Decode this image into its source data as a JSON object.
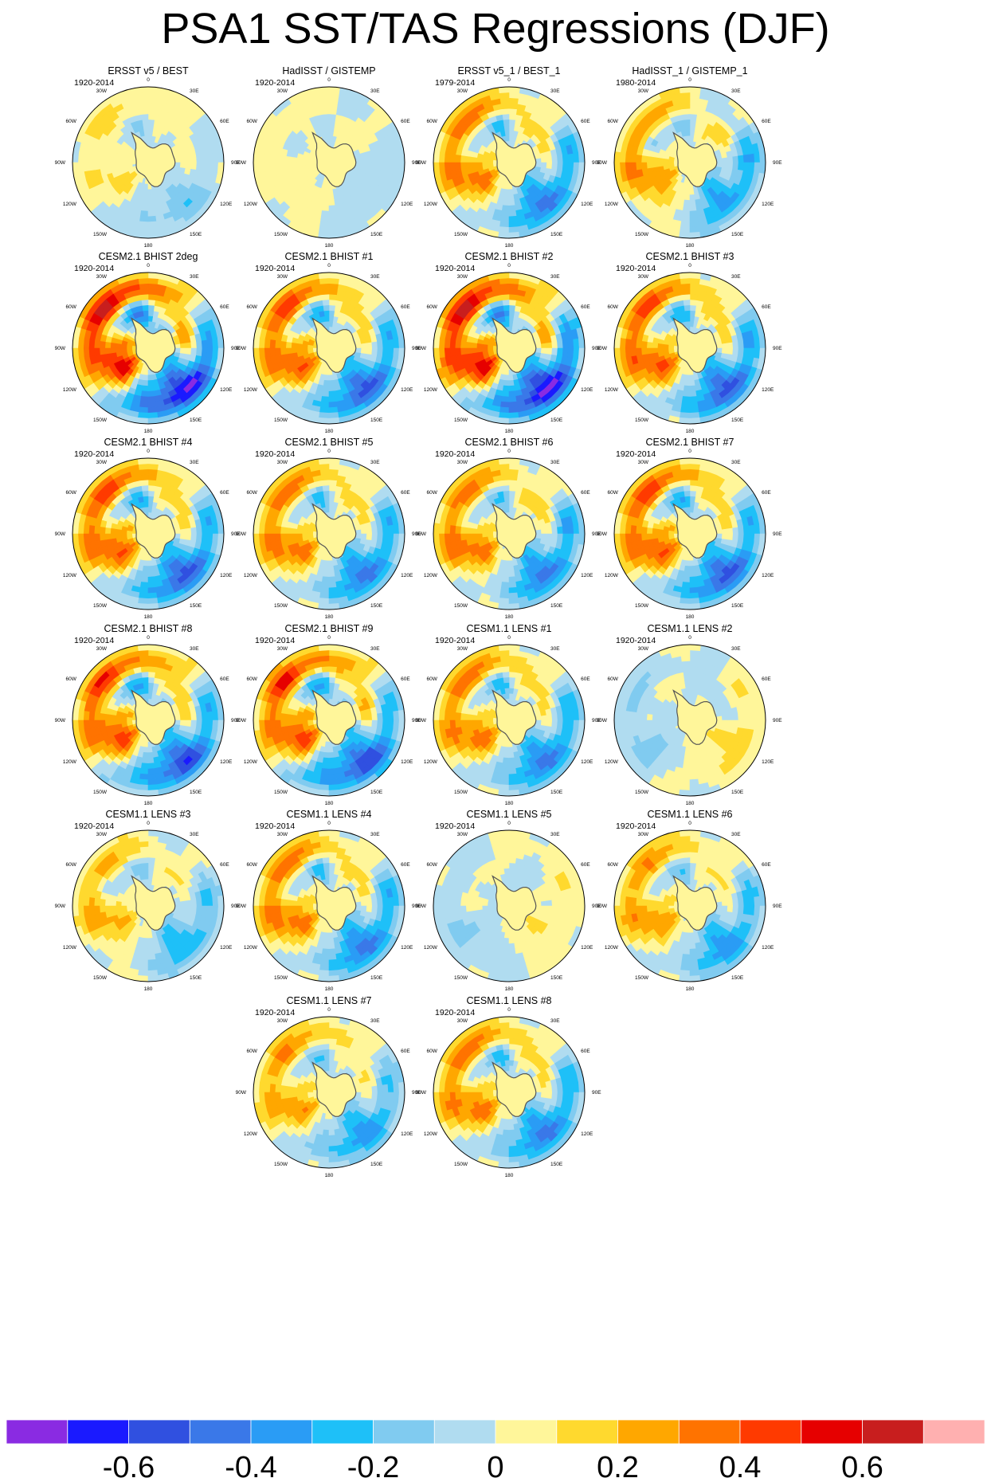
{
  "title": "PSA1 SST/TAS Regressions (DJF)",
  "chart_data": {
    "type": "polar-map-grid",
    "projection": "south-polar-stereographic",
    "layout": "6 rows x 4 columns; last row has 2 centered panels",
    "lon_labels": [
      "0",
      "30E",
      "60E",
      "90E",
      "120E",
      "150E",
      "180",
      "150W",
      "120W",
      "90W",
      "60W",
      "30W"
    ],
    "panels": [
      {
        "title": "ERSST v5 / BEST",
        "period": "1920-2014",
        "pattern": {
          "amp": 0.35,
          "contrast": 0.6,
          "phase": 0.0
        }
      },
      {
        "title": "HadISST / GISTEMP",
        "period": "1920-2014",
        "pattern": {
          "amp": 0.25,
          "contrast": 0.4,
          "phase": 0.5
        }
      },
      {
        "title": "ERSST v5_1 / BEST_1",
        "period": "1979-2014",
        "pattern": {
          "amp": 0.55,
          "contrast": 1.0,
          "phase": 0.2
        }
      },
      {
        "title": "HadISST_1 / GISTEMP_1",
        "period": "1980-2014",
        "pattern": {
          "amp": 0.5,
          "contrast": 0.9,
          "phase": 0.4
        }
      },
      {
        "title": "CESM2.1 BHIST 2deg",
        "period": "1920-2014",
        "pattern": {
          "amp": 0.7,
          "contrast": 1.3,
          "phase": 0.0
        }
      },
      {
        "title": "CESM2.1 BHIST #1",
        "period": "1920-2014",
        "pattern": {
          "amp": 0.6,
          "contrast": 1.1,
          "phase": 0.1
        }
      },
      {
        "title": "CESM2.1 BHIST #2",
        "period": "1920-2014",
        "pattern": {
          "amp": 0.7,
          "contrast": 1.3,
          "phase": 0.05
        }
      },
      {
        "title": "CESM2.1 BHIST #3",
        "period": "1920-2014",
        "pattern": {
          "amp": 0.6,
          "contrast": 1.1,
          "phase": 0.15
        }
      },
      {
        "title": "CESM2.1 BHIST #4",
        "period": "1920-2014",
        "pattern": {
          "amp": 0.6,
          "contrast": 1.1,
          "phase": 0.1
        }
      },
      {
        "title": "CESM2.1 BHIST #5",
        "period": "1920-2014",
        "pattern": {
          "amp": 0.55,
          "contrast": 1.0,
          "phase": 0.2
        }
      },
      {
        "title": "CESM2.1 BHIST #6",
        "period": "1920-2014",
        "pattern": {
          "amp": 0.55,
          "contrast": 1.0,
          "phase": 0.25
        }
      },
      {
        "title": "CESM2.1 BHIST #7",
        "period": "1920-2014",
        "pattern": {
          "amp": 0.6,
          "contrast": 1.1,
          "phase": 0.1
        }
      },
      {
        "title": "CESM2.1 BHIST #8",
        "period": "1920-2014",
        "pattern": {
          "amp": 0.6,
          "contrast": 1.2,
          "phase": 0.05
        }
      },
      {
        "title": "CESM2.1 BHIST #9",
        "period": "1920-2014",
        "pattern": {
          "amp": 0.6,
          "contrast": 1.2,
          "phase": 0.0
        }
      },
      {
        "title": "CESM1.1 LENS #1",
        "period": "1920-2014",
        "pattern": {
          "amp": 0.55,
          "contrast": 1.0,
          "phase": 0.15
        }
      },
      {
        "title": "CESM1.1 LENS #2",
        "period": "1920-2014",
        "pattern": {
          "amp": 0.3,
          "contrast": -0.6,
          "phase": 0.6
        }
      },
      {
        "title": "CESM1.1 LENS #3",
        "period": "1920-2014",
        "pattern": {
          "amp": 0.45,
          "contrast": 0.8,
          "phase": 0.3
        }
      },
      {
        "title": "CESM1.1 LENS #4",
        "period": "1920-2014",
        "pattern": {
          "amp": 0.55,
          "contrast": 1.0,
          "phase": 0.2
        }
      },
      {
        "title": "CESM1.1 LENS #5",
        "period": "1920-2014",
        "pattern": {
          "amp": 0.3,
          "contrast": -0.5,
          "phase": 0.9
        }
      },
      {
        "title": "CESM1.1 LENS #6",
        "period": "1920-2014",
        "pattern": {
          "amp": 0.5,
          "contrast": 0.9,
          "phase": 0.2
        }
      },
      {
        "title": "CESM1.1 LENS #7",
        "period": "1920-2014",
        "pattern": {
          "amp": 0.5,
          "contrast": 0.9,
          "phase": 0.1
        }
      },
      {
        "title": "CESM1.1 LENS #8",
        "period": "1920-2014",
        "pattern": {
          "amp": 0.55,
          "contrast": 1.0,
          "phase": 0.15
        }
      }
    ],
    "colorbar": {
      "levels": [
        -0.7,
        -0.6,
        -0.5,
        -0.4,
        -0.3,
        -0.2,
        -0.1,
        0,
        0.1,
        0.2,
        0.3,
        0.4,
        0.5,
        0.6,
        0.7
      ],
      "colors": [
        "#8a2be2",
        "#1a1aff",
        "#3050e0",
        "#3a78e8",
        "#2a9cf5",
        "#1ec0f8",
        "#80cbf0",
        "#b0dcf0",
        "#fff69a",
        "#ffd92e",
        "#ffa700",
        "#ff7300",
        "#ff3a00",
        "#e60000",
        "#c81e1e",
        "#ffb0b0"
      ],
      "tick_labels": [
        "-0.6",
        "-0.4",
        "-0.2",
        "0",
        "0.2",
        "0.4",
        "0.6"
      ],
      "tick_values": [
        -0.6,
        -0.4,
        -0.2,
        0,
        0.2,
        0.4,
        0.6
      ]
    }
  }
}
